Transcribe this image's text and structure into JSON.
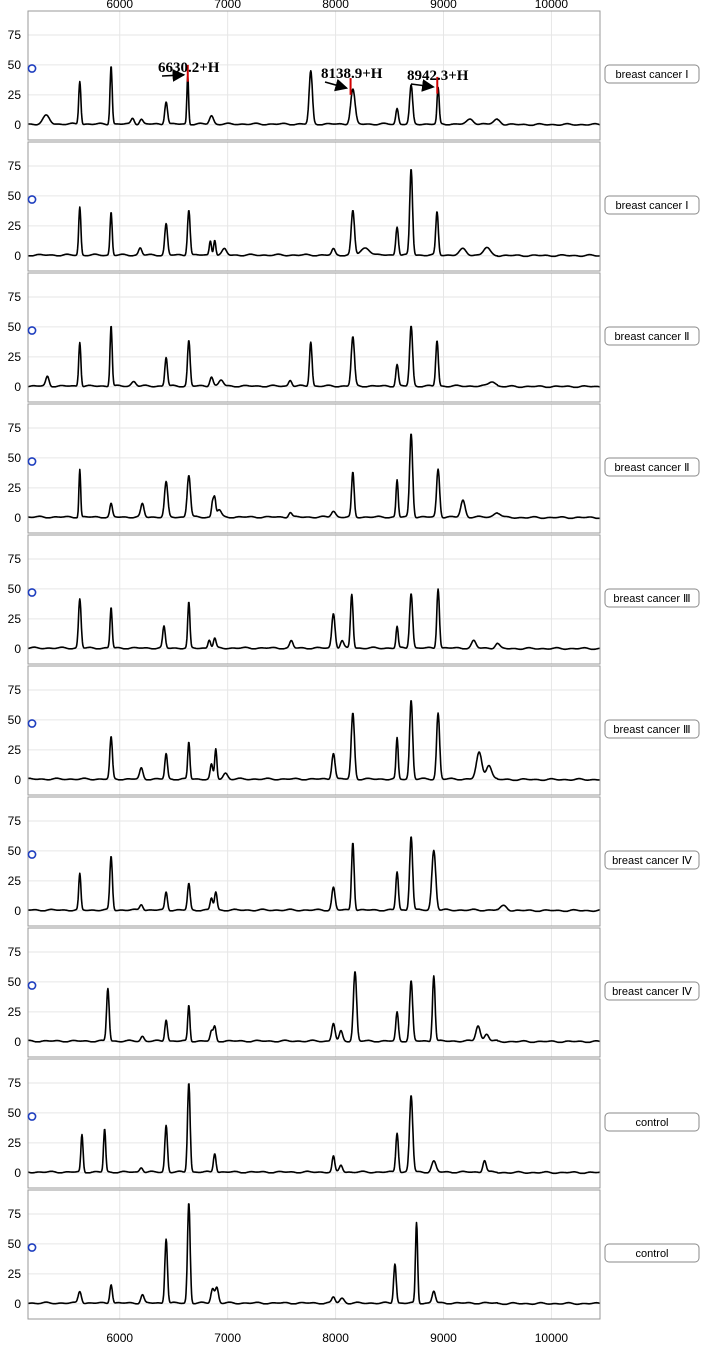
{
  "chart_data": {
    "type": "line",
    "x_ticks": [
      6000,
      7000,
      8000,
      9000,
      10000
    ],
    "y_ticks": [
      0,
      25,
      50,
      75
    ],
    "xlim": [
      5150,
      10450
    ],
    "ylim": [
      -6,
      95
    ],
    "grid": true,
    "annotations": [
      {
        "text": "6630.2+H",
        "x": 6630.2
      },
      {
        "text": "8138.9+H",
        "x": 8138.9
      },
      {
        "text": "8942.3+H",
        "x": 8942.3
      }
    ],
    "panels": [
      {
        "label": "breast cancer Ⅰ",
        "marker_y": 47,
        "peaks": [
          [
            5320,
            7,
            30
          ],
          [
            5630,
            36,
            10
          ],
          [
            5920,
            49,
            10
          ],
          [
            6120,
            5,
            15
          ],
          [
            6200,
            4,
            15
          ],
          [
            6430,
            19,
            13
          ],
          [
            6630,
            40,
            8
          ],
          [
            6850,
            7,
            18
          ],
          [
            7770,
            44,
            15
          ],
          [
            8160,
            29,
            20
          ],
          [
            8570,
            13,
            12
          ],
          [
            8700,
            32,
            14
          ],
          [
            8950,
            30,
            10
          ],
          [
            9250,
            4,
            30
          ],
          [
            9500,
            4,
            30
          ]
        ]
      },
      {
        "label": "breast cancer Ⅰ",
        "marker_y": 47,
        "peaks": [
          [
            5630,
            40,
            10
          ],
          [
            5920,
            36,
            10
          ],
          [
            6190,
            6,
            15
          ],
          [
            6430,
            26,
            13
          ],
          [
            6640,
            38,
            12
          ],
          [
            6840,
            12,
            10
          ],
          [
            6880,
            13,
            10
          ],
          [
            6970,
            5,
            20
          ],
          [
            7980,
            5,
            15
          ],
          [
            8160,
            37,
            15
          ],
          [
            8280,
            6,
            40
          ],
          [
            8570,
            24,
            12
          ],
          [
            8700,
            72,
            13
          ],
          [
            8940,
            36,
            12
          ],
          [
            9180,
            5,
            30
          ],
          [
            9400,
            6,
            30
          ]
        ]
      },
      {
        "label": "breast cancer Ⅱ",
        "marker_y": 47,
        "peaks": [
          [
            5330,
            8,
            15
          ],
          [
            5630,
            37,
            10
          ],
          [
            5920,
            51,
            10
          ],
          [
            6130,
            4,
            20
          ],
          [
            6430,
            24,
            12
          ],
          [
            6640,
            38,
            12
          ],
          [
            6850,
            8,
            15
          ],
          [
            6940,
            5,
            20
          ],
          [
            7580,
            5,
            15
          ],
          [
            7770,
            37,
            12
          ],
          [
            8160,
            41,
            15
          ],
          [
            8570,
            18,
            12
          ],
          [
            8700,
            50,
            14
          ],
          [
            8940,
            38,
            12
          ],
          [
            9450,
            4,
            30
          ]
        ]
      },
      {
        "label": "breast cancer Ⅱ",
        "marker_y": 47,
        "peaks": [
          [
            5630,
            40,
            8
          ],
          [
            5920,
            11,
            12
          ],
          [
            6210,
            11,
            15
          ],
          [
            6430,
            29,
            15
          ],
          [
            6640,
            35,
            15
          ],
          [
            6860,
            12,
            10
          ],
          [
            6880,
            15,
            10
          ],
          [
            6920,
            6,
            20
          ],
          [
            7580,
            4,
            15
          ],
          [
            7980,
            5,
            20
          ],
          [
            8160,
            37,
            12
          ],
          [
            8570,
            31,
            10
          ],
          [
            8700,
            70,
            14
          ],
          [
            8950,
            40,
            14
          ],
          [
            9180,
            14,
            20
          ],
          [
            9500,
            4,
            30
          ]
        ]
      },
      {
        "label": "breast cancer Ⅲ",
        "marker_y": 47,
        "peaks": [
          [
            5630,
            41,
            12
          ],
          [
            5920,
            34,
            10
          ],
          [
            6410,
            18,
            12
          ],
          [
            6640,
            38,
            10
          ],
          [
            6830,
            7,
            12
          ],
          [
            6880,
            8,
            12
          ],
          [
            7590,
            6,
            15
          ],
          [
            7980,
            29,
            15
          ],
          [
            8060,
            6,
            15
          ],
          [
            8150,
            45,
            12
          ],
          [
            8570,
            18,
            10
          ],
          [
            8700,
            46,
            14
          ],
          [
            8950,
            50,
            12
          ],
          [
            9280,
            6,
            20
          ],
          [
            9500,
            4,
            20
          ]
        ]
      },
      {
        "label": "breast cancer Ⅲ",
        "marker_y": 47,
        "peaks": [
          [
            5920,
            35,
            12
          ],
          [
            6200,
            9,
            15
          ],
          [
            6430,
            21,
            12
          ],
          [
            6640,
            31,
            10
          ],
          [
            6850,
            12,
            12
          ],
          [
            6890,
            25,
            10
          ],
          [
            6980,
            5,
            20
          ],
          [
            7980,
            22,
            15
          ],
          [
            8160,
            55,
            15
          ],
          [
            8570,
            34,
            10
          ],
          [
            8700,
            66,
            14
          ],
          [
            8950,
            55,
            14
          ],
          [
            9330,
            22,
            25
          ],
          [
            9420,
            12,
            25
          ]
        ]
      },
      {
        "label": "breast cancer Ⅳ",
        "marker_y": 47,
        "peaks": [
          [
            5630,
            30,
            10
          ],
          [
            5920,
            45,
            12
          ],
          [
            6200,
            5,
            15
          ],
          [
            6430,
            15,
            12
          ],
          [
            6640,
            22,
            12
          ],
          [
            6850,
            10,
            12
          ],
          [
            6890,
            15,
            12
          ],
          [
            7980,
            19,
            15
          ],
          [
            8160,
            57,
            12
          ],
          [
            8570,
            32,
            12
          ],
          [
            8700,
            62,
            14
          ],
          [
            8910,
            50,
            18
          ],
          [
            9560,
            4,
            30
          ]
        ]
      },
      {
        "label": "breast cancer Ⅳ",
        "marker_y": 47,
        "peaks": [
          [
            5890,
            44,
            12
          ],
          [
            6210,
            4,
            15
          ],
          [
            6430,
            18,
            12
          ],
          [
            6640,
            30,
            10
          ],
          [
            6850,
            8,
            12
          ],
          [
            6880,
            12,
            12
          ],
          [
            7980,
            15,
            15
          ],
          [
            8050,
            8,
            15
          ],
          [
            8180,
            58,
            15
          ],
          [
            8570,
            24,
            12
          ],
          [
            8700,
            50,
            14
          ],
          [
            8910,
            55,
            12
          ],
          [
            9320,
            13,
            20
          ],
          [
            9400,
            6,
            20
          ]
        ]
      },
      {
        "label": "control",
        "marker_y": 47,
        "peaks": [
          [
            5650,
            31,
            10
          ],
          [
            5860,
            36,
            10
          ],
          [
            6200,
            4,
            15
          ],
          [
            6430,
            39,
            12
          ],
          [
            6640,
            75,
            12
          ],
          [
            6880,
            16,
            12
          ],
          [
            7980,
            13,
            12
          ],
          [
            8050,
            6,
            15
          ],
          [
            8570,
            33,
            12
          ],
          [
            8700,
            64,
            15
          ],
          [
            8910,
            9,
            20
          ],
          [
            9380,
            10,
            15
          ]
        ]
      },
      {
        "label": "control",
        "marker_y": 47,
        "peaks": [
          [
            5630,
            10,
            15
          ],
          [
            5920,
            16,
            12
          ],
          [
            6210,
            7,
            15
          ],
          [
            6430,
            54,
            12
          ],
          [
            6640,
            84,
            12
          ],
          [
            6860,
            12,
            15
          ],
          [
            6900,
            13,
            15
          ],
          [
            7980,
            5,
            15
          ],
          [
            8060,
            4,
            20
          ],
          [
            8550,
            33,
            12
          ],
          [
            8750,
            67,
            10
          ],
          [
            8910,
            10,
            15
          ]
        ]
      }
    ]
  }
}
